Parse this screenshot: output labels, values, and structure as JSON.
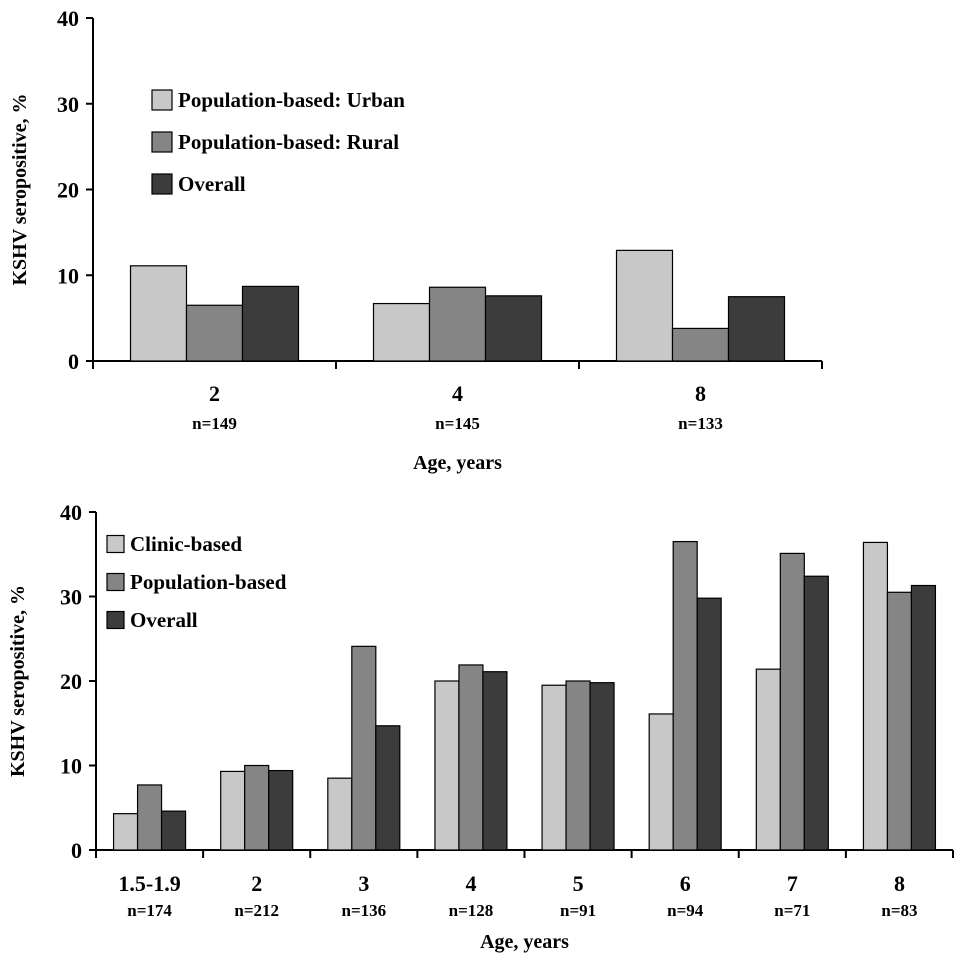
{
  "chart_data": [
    {
      "type": "bar",
      "ylabel": "KSHV seropositive, %",
      "xlabel": "Age, years",
      "ylim": [
        0,
        40
      ],
      "yticks": [
        0,
        10,
        20,
        30,
        40
      ],
      "categories": [
        "2",
        "4",
        "8"
      ],
      "category_notes": [
        "n=149",
        "n=145",
        "n=133"
      ],
      "legend_position": "top-left",
      "series": [
        {
          "name": "Population-based: Urban",
          "color": "#c8c8c8",
          "values": [
            11.1,
            6.7,
            12.9
          ]
        },
        {
          "name": "Population-based: Rural",
          "color": "#858585",
          "values": [
            6.5,
            8.6,
            3.8
          ]
        },
        {
          "name": "Overall",
          "color": "#3c3c3c",
          "values": [
            8.7,
            7.6,
            7.5
          ]
        }
      ]
    },
    {
      "type": "bar",
      "ylabel": "KSHV seropositive, %",
      "xlabel": "Age, years",
      "ylim": [
        0,
        40
      ],
      "yticks": [
        0,
        10,
        20,
        30,
        40
      ],
      "categories": [
        "1.5-1.9",
        "2",
        "3",
        "4",
        "5",
        "6",
        "7",
        "8"
      ],
      "category_notes": [
        "n=174",
        "n=212",
        "n=136",
        "n=128",
        "n=91",
        "n=94",
        "n=71",
        "n=83"
      ],
      "legend_position": "top-left",
      "series": [
        {
          "name": "Clinic-based",
          "color": "#c8c8c8",
          "values": [
            4.3,
            9.3,
            8.5,
            20.0,
            19.5,
            16.1,
            21.4,
            36.4
          ]
        },
        {
          "name": "Population-based",
          "color": "#858585",
          "values": [
            7.7,
            10.0,
            24.1,
            21.9,
            20.0,
            36.5,
            35.1,
            30.5
          ]
        },
        {
          "name": "Overall",
          "color": "#3c3c3c",
          "values": [
            4.6,
            9.4,
            14.7,
            21.1,
            19.8,
            29.8,
            32.4,
            31.3
          ]
        }
      ]
    }
  ]
}
